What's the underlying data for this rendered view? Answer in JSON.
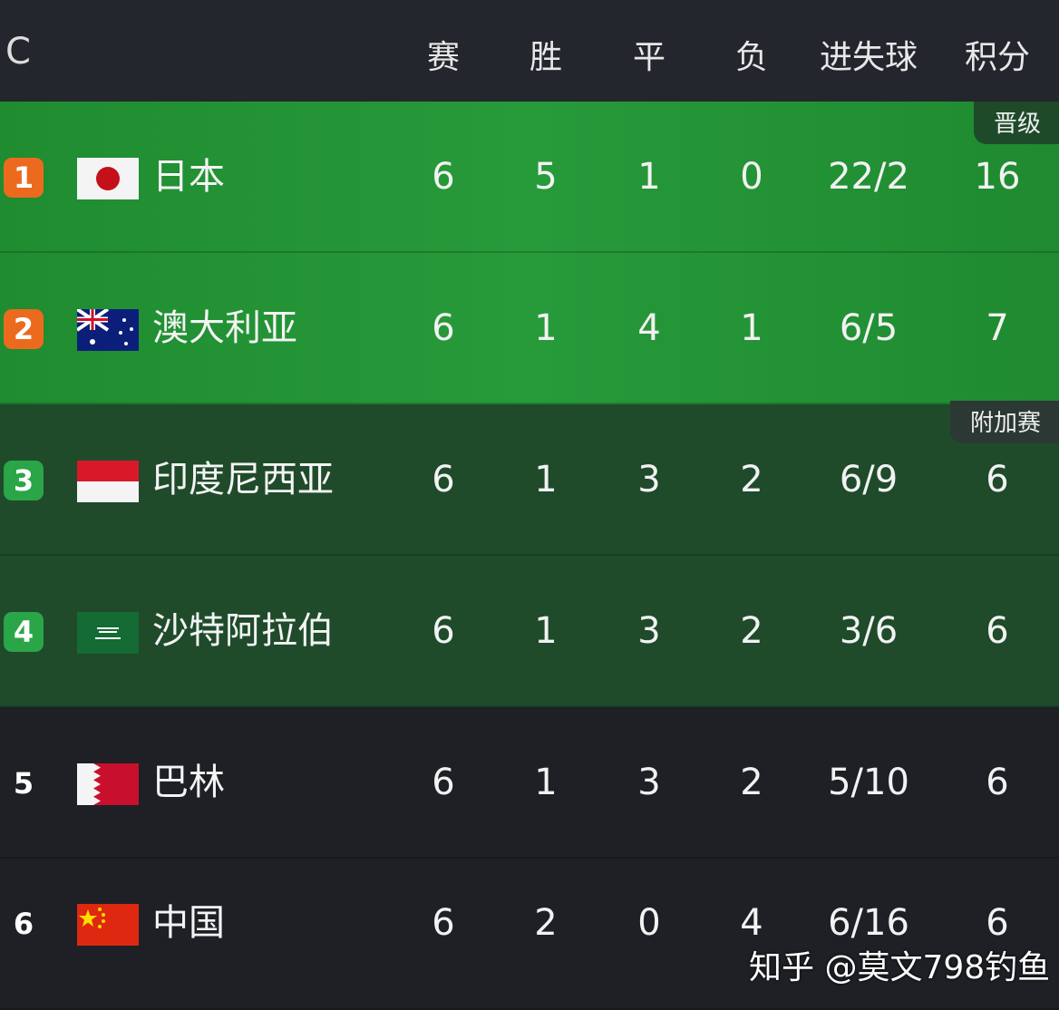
{
  "header": {
    "group": "C",
    "columns": [
      "赛",
      "胜",
      "平",
      "负",
      "进失球",
      "积分"
    ]
  },
  "zones": {
    "promotion": "晋级",
    "playoff": "附加赛"
  },
  "colors": {
    "promotion_bg": "#239535",
    "playoff_bg": "#1f4b2b",
    "rank_orange": "#ec6a1e",
    "rank_green": "#2aa548"
  },
  "rows": [
    {
      "rank": "1",
      "team": "日本",
      "flag": "japan-flag",
      "p": "6",
      "w": "5",
      "d": "1",
      "l": "0",
      "gf_ga": "22/2",
      "pts": "16"
    },
    {
      "rank": "2",
      "team": "澳大利亚",
      "flag": "australia-flag",
      "p": "6",
      "w": "1",
      "d": "4",
      "l": "1",
      "gf_ga": "6/5",
      "pts": "7"
    },
    {
      "rank": "3",
      "team": "印度尼西亚",
      "flag": "indonesia-flag",
      "p": "6",
      "w": "1",
      "d": "3",
      "l": "2",
      "gf_ga": "6/9",
      "pts": "6"
    },
    {
      "rank": "4",
      "team": "沙特阿拉伯",
      "flag": "saudi-arabia-flag",
      "p": "6",
      "w": "1",
      "d": "3",
      "l": "2",
      "gf_ga": "3/6",
      "pts": "6"
    },
    {
      "rank": "5",
      "team": "巴林",
      "flag": "bahrain-flag",
      "p": "6",
      "w": "1",
      "d": "3",
      "l": "2",
      "gf_ga": "5/10",
      "pts": "6"
    },
    {
      "rank": "6",
      "team": "中国",
      "flag": "china-flag",
      "p": "6",
      "w": "2",
      "d": "0",
      "l": "4",
      "gf_ga": "6/16",
      "pts": "6"
    }
  ],
  "watermark": "知乎 @莫文798钓鱼"
}
